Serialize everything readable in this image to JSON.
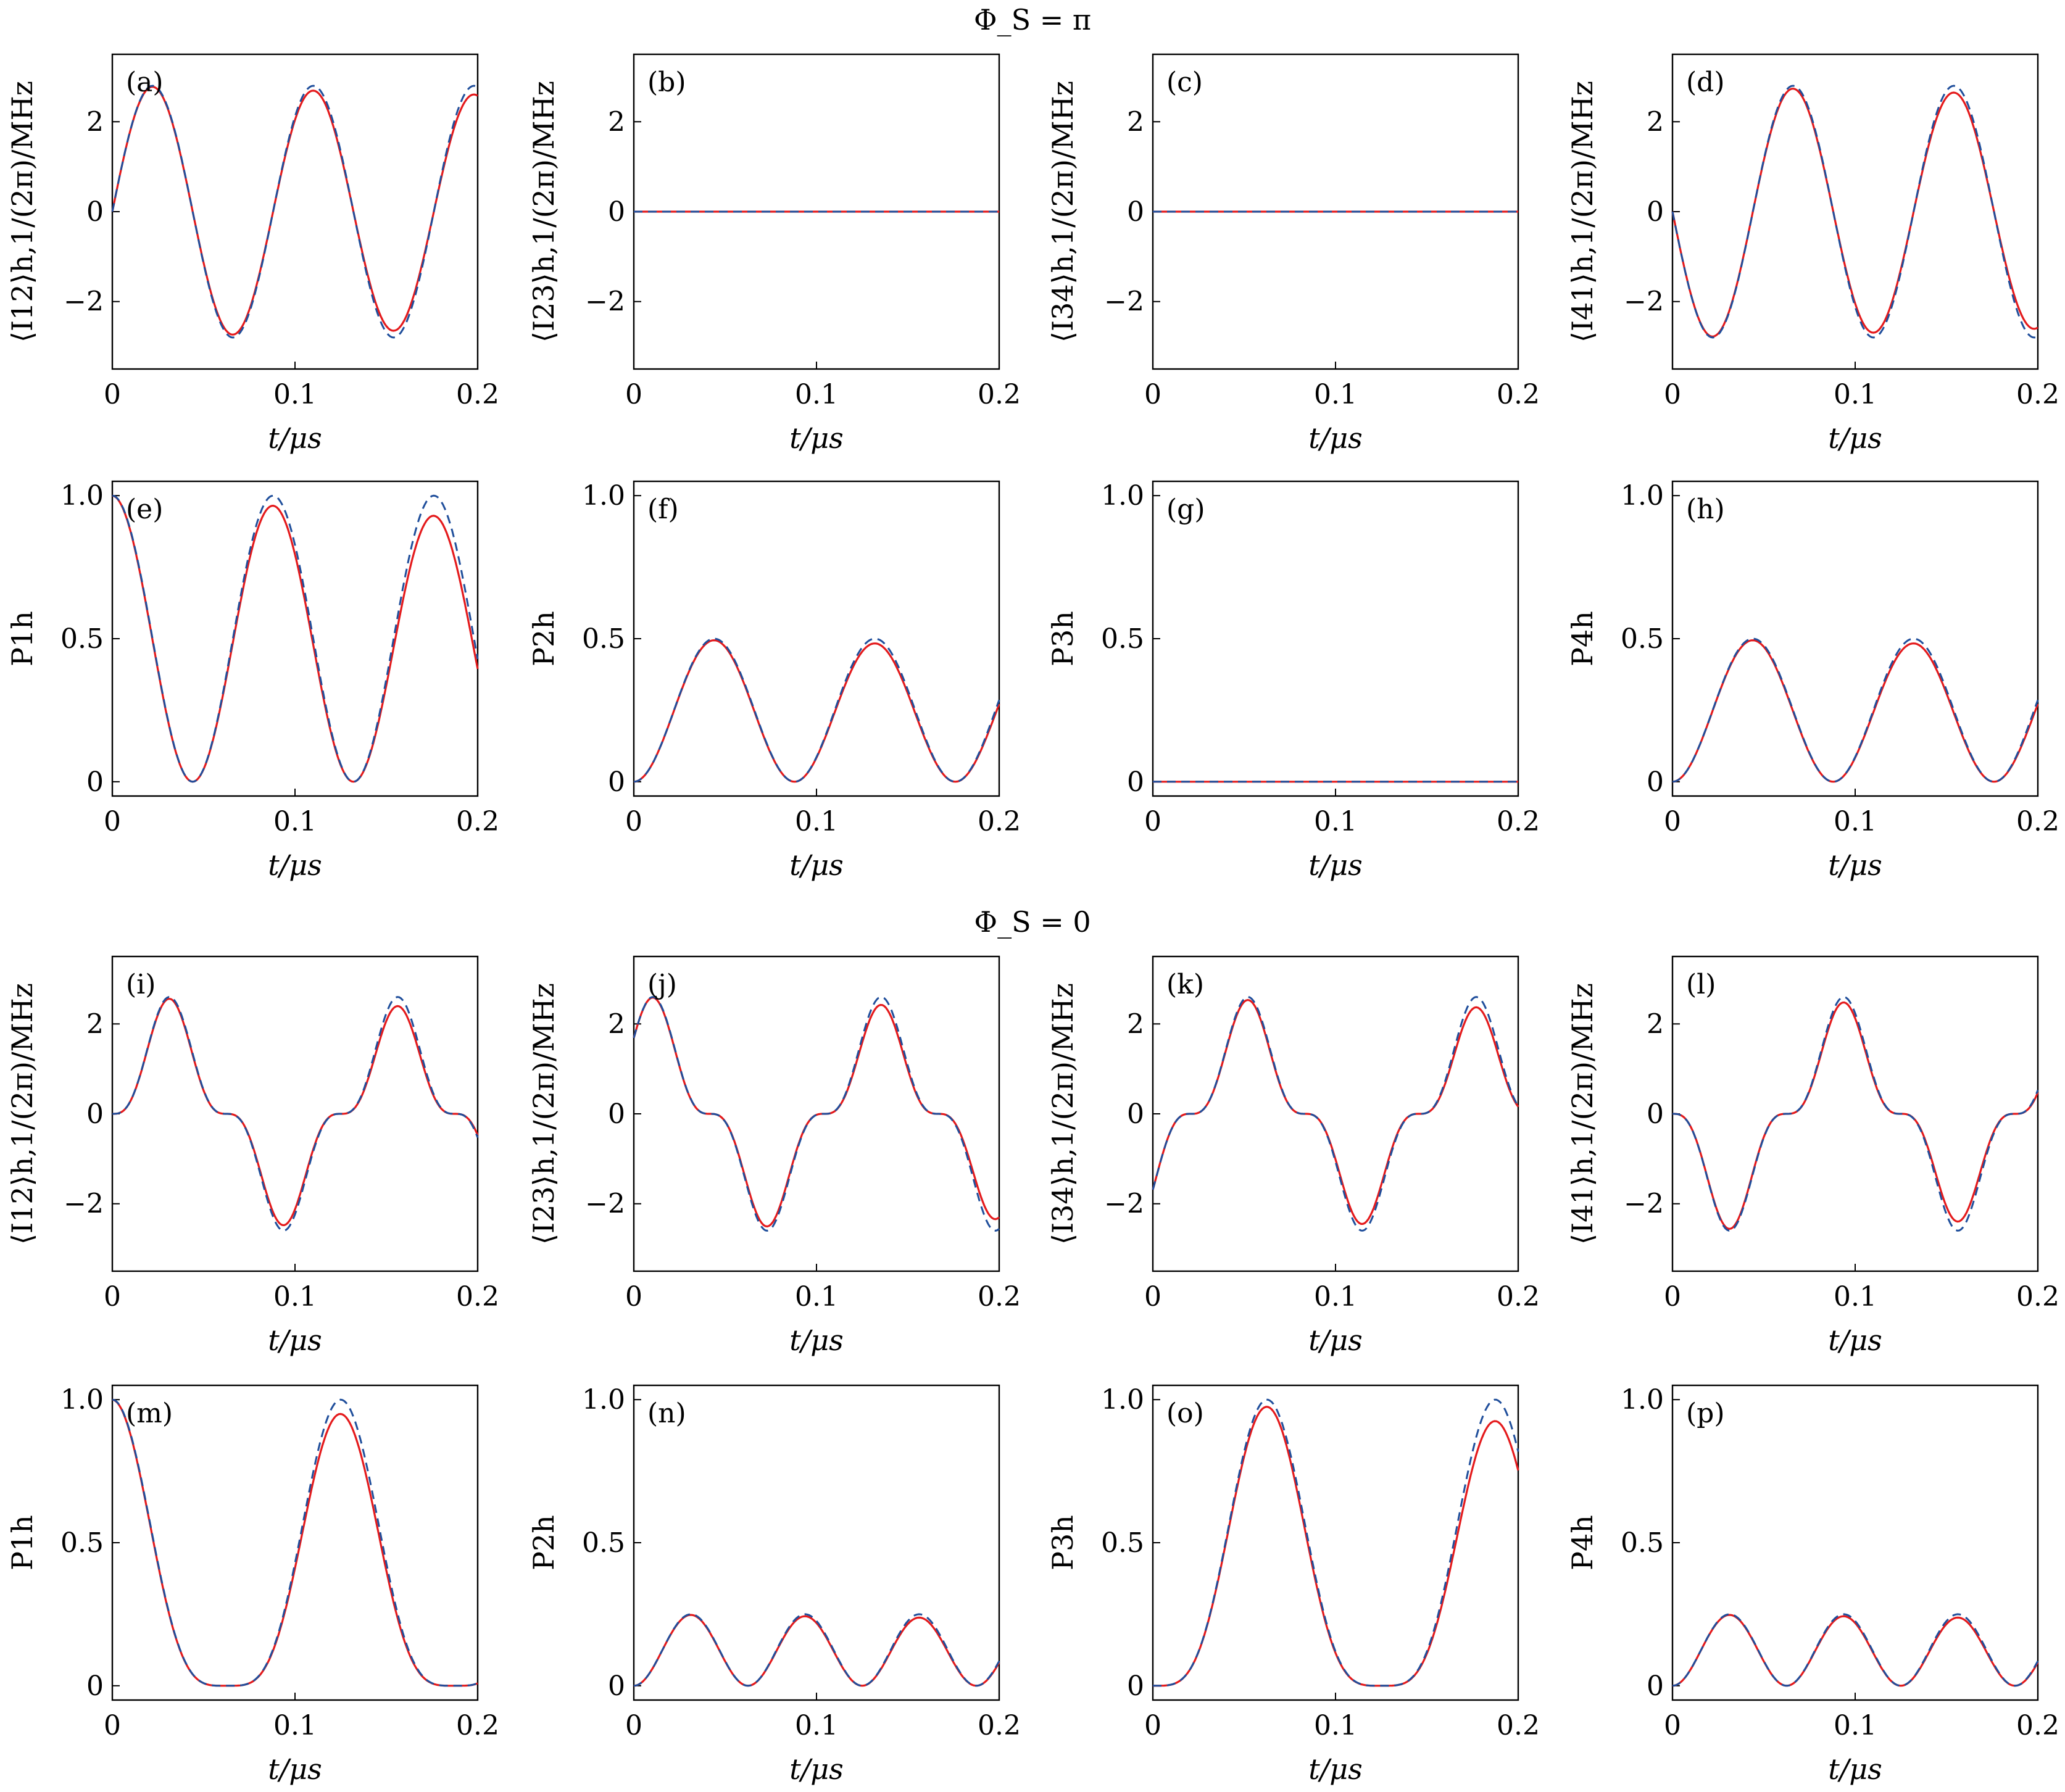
{
  "figure": {
    "section_titles": [
      "Φ_S = π",
      "Φ_S = 0"
    ]
  },
  "chart_data": [
    {
      "panel": "(a)",
      "type": "line",
      "xlabel": "t/μs",
      "ylabel": "⟨I12⟩h,1/(2π)/MHz",
      "xlim": [
        0,
        0.2
      ],
      "ylim": [
        -3.5,
        3.5
      ],
      "xticks": [
        "0",
        "0.1",
        "0.2"
      ],
      "yticks": [
        "−2",
        "0",
        "2"
      ],
      "series": [
        {
          "style": "solid",
          "color": "#e41a1c",
          "fn": "A*sin(w*t)",
          "A": 2.8,
          "w": 71.4,
          "decay": 0.0
        },
        {
          "style": "dashed",
          "color": "#1f4e9b",
          "fn": "A*sin(w*t)",
          "A": 2.8,
          "w": 71.4,
          "decay": 0.0
        }
      ]
    },
    {
      "panel": "(b)",
      "type": "line",
      "xlabel": "t/μs",
      "ylabel": "⟨I23⟩h,1/(2π)/MHz",
      "xlim": [
        0,
        0.2
      ],
      "ylim": [
        -3.5,
        3.5
      ],
      "xticks": [
        "0",
        "0.1",
        "0.2"
      ],
      "yticks": [
        "−2",
        "0",
        "2"
      ],
      "series": [
        {
          "style": "solid",
          "color": "#e41a1c",
          "fn": "zero"
        },
        {
          "style": "dashed",
          "color": "#1f4e9b",
          "fn": "zero"
        }
      ]
    },
    {
      "panel": "(c)",
      "type": "line",
      "xlabel": "t/μs",
      "ylabel": "⟨I34⟩h,1/(2π)/MHz",
      "xlim": [
        0,
        0.2
      ],
      "ylim": [
        -3.5,
        3.5
      ],
      "xticks": [
        "0",
        "0.1",
        "0.2"
      ],
      "yticks": [
        "−2",
        "0",
        "2"
      ],
      "series": [
        {
          "style": "solid",
          "color": "#e41a1c",
          "fn": "zero"
        },
        {
          "style": "dashed",
          "color": "#1f4e9b",
          "fn": "zero"
        }
      ]
    },
    {
      "panel": "(d)",
      "type": "line",
      "xlabel": "t/μs",
      "ylabel": "⟨I41⟩h,1/(2π)/MHz",
      "xlim": [
        0,
        0.2
      ],
      "ylim": [
        -3.5,
        3.5
      ],
      "xticks": [
        "0",
        "0.1",
        "0.2"
      ],
      "yticks": [
        "−2",
        "0",
        "2"
      ],
      "series": [
        {
          "style": "solid",
          "color": "#e41a1c",
          "fn": "-A*sin(w*t)",
          "A": 2.8,
          "w": 71.4
        },
        {
          "style": "dashed",
          "color": "#1f4e9b",
          "fn": "-A*sin(w*t)",
          "A": 2.8,
          "w": 71.4
        }
      ]
    },
    {
      "panel": "(e)",
      "type": "line",
      "xlabel": "t/μs",
      "ylabel": "P1h",
      "xlim": [
        0,
        0.2
      ],
      "ylim": [
        -0.05,
        1.05
      ],
      "xticks": [
        "0",
        "0.1",
        "0.2"
      ],
      "yticks": [
        "0",
        "0.5",
        "1.0"
      ],
      "series": [
        {
          "style": "solid",
          "color": "#e41a1c",
          "fn": "cos2",
          "w": 71.4
        },
        {
          "style": "dashed",
          "color": "#1f4e9b",
          "fn": "cos2",
          "w": 71.4
        }
      ]
    },
    {
      "panel": "(f)",
      "type": "line",
      "xlabel": "t/μs",
      "ylabel": "P2h",
      "xlim": [
        0,
        0.2
      ],
      "ylim": [
        -0.05,
        1.05
      ],
      "xticks": [
        "0",
        "0.1",
        "0.2"
      ],
      "yticks": [
        "0",
        "0.5",
        "1.0"
      ],
      "series": [
        {
          "style": "solid",
          "color": "#e41a1c",
          "fn": "halfsin2",
          "w": 71.4
        },
        {
          "style": "dashed",
          "color": "#1f4e9b",
          "fn": "halfsin2",
          "w": 71.4
        }
      ]
    },
    {
      "panel": "(g)",
      "type": "line",
      "xlabel": "t/μs",
      "ylabel": "P3h",
      "xlim": [
        0,
        0.2
      ],
      "ylim": [
        -0.05,
        1.05
      ],
      "xticks": [
        "0",
        "0.1",
        "0.2"
      ],
      "yticks": [
        "0",
        "0.5",
        "1.0"
      ],
      "series": [
        {
          "style": "solid",
          "color": "#e41a1c",
          "fn": "zero"
        },
        {
          "style": "dashed",
          "color": "#1f4e9b",
          "fn": "zero"
        }
      ]
    },
    {
      "panel": "(h)",
      "type": "line",
      "xlabel": "t/μs",
      "ylabel": "P4h",
      "xlim": [
        0,
        0.2
      ],
      "ylim": [
        -0.05,
        1.05
      ],
      "xticks": [
        "0",
        "0.1",
        "0.2"
      ],
      "yticks": [
        "0",
        "0.5",
        "1.0"
      ],
      "series": [
        {
          "style": "solid",
          "color": "#e41a1c",
          "fn": "halfsin2",
          "w": 71.4
        },
        {
          "style": "dashed",
          "color": "#1f4e9b",
          "fn": "halfsin2",
          "w": 71.4
        }
      ]
    },
    {
      "panel": "(i)",
      "type": "line",
      "xlabel": "t/μs",
      "ylabel": "⟨I12⟩h,1/(2π)/MHz",
      "xlim": [
        0,
        0.2
      ],
      "ylim": [
        -3.5,
        3.5
      ],
      "xticks": [
        "0",
        "0.1",
        "0.2"
      ],
      "yticks": [
        "−2",
        "0",
        "2"
      ],
      "series": [
        {
          "style": "solid",
          "color": "#e41a1c",
          "fn": "cur0",
          "k": 0
        },
        {
          "style": "dashed",
          "color": "#1f4e9b",
          "fn": "cur0",
          "k": 0
        }
      ]
    },
    {
      "panel": "(j)",
      "type": "line",
      "xlabel": "t/μs",
      "ylabel": "⟨I23⟩h,1/(2π)/MHz",
      "xlim": [
        0,
        0.2
      ],
      "ylim": [
        -3.5,
        3.5
      ],
      "xticks": [
        "0",
        "0.1",
        "0.2"
      ],
      "yticks": [
        "−2",
        "0",
        "2"
      ],
      "series": [
        {
          "style": "solid",
          "color": "#e41a1c",
          "fn": "cur0",
          "k": 1
        },
        {
          "style": "dashed",
          "color": "#1f4e9b",
          "fn": "cur0",
          "k": 1
        }
      ]
    },
    {
      "panel": "(k)",
      "type": "line",
      "xlabel": "t/μs",
      "ylabel": "⟨I34⟩h,1/(2π)/MHz",
      "xlim": [
        0,
        0.2
      ],
      "ylim": [
        -3.5,
        3.5
      ],
      "xticks": [
        "0",
        "0.1",
        "0.2"
      ],
      "yticks": [
        "−2",
        "0",
        "2"
      ],
      "series": [
        {
          "style": "solid",
          "color": "#e41a1c",
          "fn": "cur0",
          "k": 2
        },
        {
          "style": "dashed",
          "color": "#1f4e9b",
          "fn": "cur0",
          "k": 2
        }
      ]
    },
    {
      "panel": "(l)",
      "type": "line",
      "xlabel": "t/μs",
      "ylabel": "⟨I41⟩h,1/(2π)/MHz",
      "xlim": [
        0,
        0.2
      ],
      "ylim": [
        -3.5,
        3.5
      ],
      "xticks": [
        "0",
        "0.1",
        "0.2"
      ],
      "yticks": [
        "−2",
        "0",
        "2"
      ],
      "series": [
        {
          "style": "solid",
          "color": "#e41a1c",
          "fn": "cur0",
          "k": 3
        },
        {
          "style": "dashed",
          "color": "#1f4e9b",
          "fn": "cur0",
          "k": 3
        }
      ]
    },
    {
      "panel": "(m)",
      "type": "line",
      "xlabel": "t/μs",
      "ylabel": "P1h",
      "xlim": [
        0,
        0.2
      ],
      "ylim": [
        -0.05,
        1.05
      ],
      "xticks": [
        "0",
        "0.1",
        "0.2"
      ],
      "yticks": [
        "0",
        "0.5",
        "1.0"
      ],
      "series": [
        {
          "style": "solid",
          "color": "#e41a1c",
          "fn": "pop0",
          "k": 0
        },
        {
          "style": "dashed",
          "color": "#1f4e9b",
          "fn": "pop0",
          "k": 0
        }
      ]
    },
    {
      "panel": "(n)",
      "type": "line",
      "xlabel": "t/μs",
      "ylabel": "P2h",
      "xlim": [
        0,
        0.2
      ],
      "ylim": [
        -0.05,
        1.05
      ],
      "xticks": [
        "0",
        "0.1",
        "0.2"
      ],
      "yticks": [
        "0",
        "0.5",
        "1.0"
      ],
      "series": [
        {
          "style": "solid",
          "color": "#e41a1c",
          "fn": "pop0",
          "k": 1
        },
        {
          "style": "dashed",
          "color": "#1f4e9b",
          "fn": "pop0",
          "k": 1
        }
      ]
    },
    {
      "panel": "(o)",
      "type": "line",
      "xlabel": "t/μs",
      "ylabel": "P3h",
      "xlim": [
        0,
        0.2
      ],
      "ylim": [
        -0.05,
        1.05
      ],
      "xticks": [
        "0",
        "0.1",
        "0.2"
      ],
      "yticks": [
        "0",
        "0.5",
        "1.0"
      ],
      "series": [
        {
          "style": "solid",
          "color": "#e41a1c",
          "fn": "pop0",
          "k": 2
        },
        {
          "style": "dashed",
          "color": "#1f4e9b",
          "fn": "pop0",
          "k": 2
        }
      ]
    },
    {
      "panel": "(p)",
      "type": "line",
      "xlabel": "t/μs",
      "ylabel": "P4h",
      "xlim": [
        0,
        0.2
      ],
      "ylim": [
        -0.05,
        1.05
      ],
      "xticks": [
        "0",
        "0.1",
        "0.2"
      ],
      "yticks": [
        "0",
        "0.5",
        "1.0"
      ],
      "series": [
        {
          "style": "solid",
          "color": "#e41a1c",
          "fn": "pop0",
          "k": 3
        },
        {
          "style": "dashed",
          "color": "#1f4e9b",
          "fn": "pop0",
          "k": 3
        }
      ]
    }
  ]
}
